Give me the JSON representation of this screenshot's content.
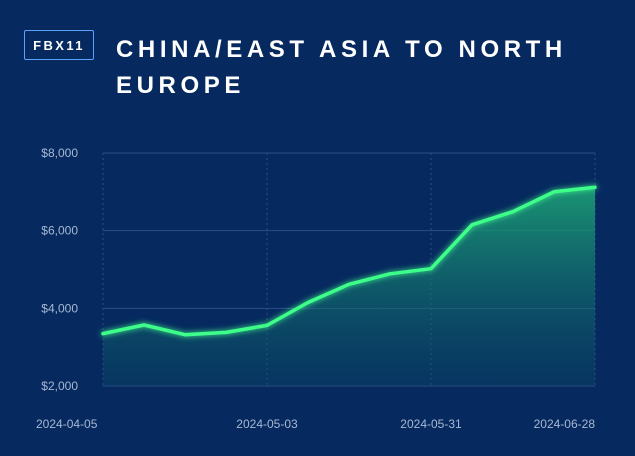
{
  "header": {
    "badge": "FBX11",
    "title": "CHINA/EAST ASIA TO NORTH EUROPE"
  },
  "colors": {
    "background": "#062a5f",
    "line": "#3dff8a",
    "badge_border": "#5aa0ff",
    "tick_text": "#a7b7d3"
  },
  "chart_data": {
    "type": "area",
    "title": "CHINA/EAST ASIA TO NORTH EUROPE",
    "x": [
      "2024-04-05",
      "2024-04-12",
      "2024-04-19",
      "2024-04-26",
      "2024-05-03",
      "2024-05-10",
      "2024-05-17",
      "2024-05-24",
      "2024-05-31",
      "2024-06-07",
      "2024-06-14",
      "2024-06-21",
      "2024-06-28"
    ],
    "series": [
      {
        "values": [
          3350,
          3570,
          3320,
          3380,
          3560,
          4150,
          4620,
          4890,
          5020,
          6150,
          6490,
          7000,
          7120
        ]
      }
    ],
    "ylim": [
      2000,
      8000
    ],
    "yticks": [
      2000,
      4000,
      6000,
      8000
    ],
    "ytick_labels": [
      "$2,000",
      "$4,000",
      "$6,000",
      "$8,000"
    ],
    "xtick_labels": [
      "2024-04-05",
      "2024-05-03",
      "2024-05-31",
      "2024-06-28"
    ],
    "grid": true,
    "legend": "none"
  }
}
